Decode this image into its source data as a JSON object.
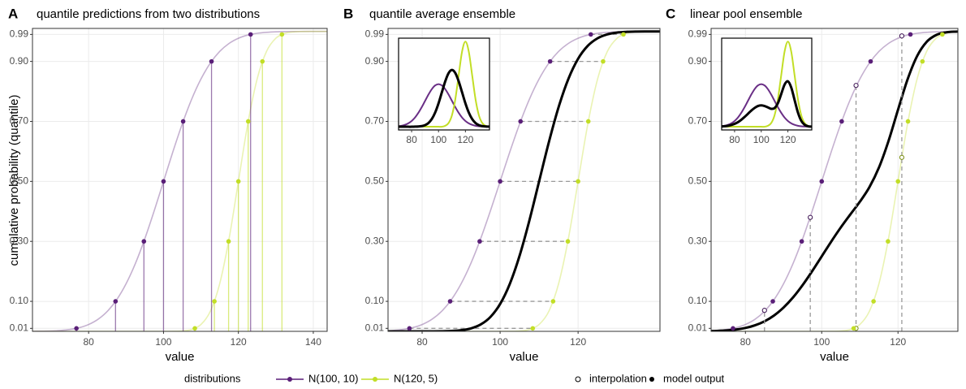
{
  "legend": {
    "title": "distributions",
    "interpolation": "interpolation",
    "model_output": "model output"
  },
  "chart_data": [
    {
      "type": "quantile",
      "panel": "A",
      "title": "quantile predictions from two distributions",
      "xlabel": "value",
      "ylabel": "cumulative probability (quantile)",
      "xlim": [
        65,
        143.7
      ],
      "xticks": [
        80,
        100,
        120,
        140
      ],
      "ylim": [
        0,
        1.01
      ],
      "yticks": [
        0.01,
        {
          "value": 0.1,
          "label": "0.10"
        },
        {
          "value": 0.3,
          "label": "0.30"
        },
        {
          "value": 0.5,
          "label": "0.50"
        },
        {
          "value": 0.7,
          "label": "0.70"
        },
        {
          "value": 0.9,
          "label": "0.90"
        },
        0.99
      ],
      "grid": true,
      "levels": [
        0.01,
        0.1,
        0.3,
        0.5,
        0.7,
        0.9,
        0.99
      ],
      "curve_x": [
        65,
        67.5,
        70,
        72.5,
        75,
        77.5,
        80,
        82.5,
        85,
        87.5,
        90,
        92.5,
        95,
        97.5,
        100,
        102.5,
        105,
        107.5,
        110,
        112.5,
        115,
        117.5,
        120,
        122.5,
        125,
        127.5,
        130,
        132.5,
        135,
        137.5,
        140,
        142.5,
        145
      ],
      "series": [
        {
          "name": "N(100, 10)",
          "color": "#5a1f78",
          "quantiles": [
            76.74,
            87.18,
            94.76,
            100,
            105.24,
            112.82,
            123.26
          ],
          "curve": [
            0.0002,
            0.0006,
            0.0013,
            0.003,
            0.0062,
            0.0122,
            0.0228,
            0.0401,
            0.0668,
            0.1056,
            0.1587,
            0.2266,
            0.3085,
            0.4013,
            0.5,
            0.5987,
            0.6915,
            0.7734,
            0.8413,
            0.8944,
            0.9332,
            0.9599,
            0.9772,
            0.9878,
            0.9938,
            0.997,
            0.9987,
            0.9994,
            0.9998,
            0.9999,
            1,
            1,
            1
          ]
        },
        {
          "name": "N(120, 5)",
          "color": "#c2de26",
          "quantiles": [
            108.37,
            113.59,
            117.38,
            120,
            122.62,
            126.41,
            131.63
          ],
          "curve": [
            0,
            0,
            0,
            0,
            0,
            0,
            0,
            0,
            0,
            0,
            0,
            0,
            0,
            0,
            0,
            0.0002,
            0.0013,
            0.0062,
            0.0228,
            0.0668,
            0.1587,
            0.3085,
            0.5,
            0.6915,
            0.8413,
            0.9332,
            0.9772,
            0.9938,
            0.9987,
            0.9998,
            1,
            1,
            1
          ]
        }
      ]
    },
    {
      "type": "quantile_average",
      "panel": "B",
      "title": "quantile average ensemble",
      "xlabel": "value",
      "xlim": [
        71.25,
        141
      ],
      "xticks": [
        80,
        100,
        120
      ],
      "ylim": [
        0,
        1.01
      ],
      "yticks": [
        0.01,
        {
          "value": 0.1,
          "label": "0.10"
        },
        {
          "value": 0.3,
          "label": "0.30"
        },
        {
          "value": 0.5,
          "label": "0.50"
        },
        {
          "value": 0.7,
          "label": "0.70"
        },
        {
          "value": 0.9,
          "label": "0.90"
        },
        0.99
      ],
      "grid": true,
      "levels": [
        0.01,
        0.1,
        0.3,
        0.5,
        0.7,
        0.9,
        0.99
      ],
      "curve_x": [
        65,
        67.5,
        70,
        72.5,
        75,
        77.5,
        80,
        82.5,
        85,
        87.5,
        90,
        92.5,
        95,
        97.5,
        100,
        102.5,
        105,
        107.5,
        110,
        112.5,
        115,
        117.5,
        120,
        122.5,
        125,
        127.5,
        130,
        132.5,
        135,
        137.5,
        140,
        142.5,
        145
      ],
      "series": [
        {
          "color": "#5a1f78",
          "quantiles": [
            76.74,
            87.18,
            94.76,
            100,
            105.24,
            112.82,
            123.26
          ],
          "curve": [
            0.0002,
            0.0006,
            0.0013,
            0.003,
            0.0062,
            0.0122,
            0.0228,
            0.0401,
            0.0668,
            0.1056,
            0.1587,
            0.2266,
            0.3085,
            0.4013,
            0.5,
            0.5987,
            0.6915,
            0.7734,
            0.8413,
            0.8944,
            0.9332,
            0.9599,
            0.9772,
            0.9878,
            0.9938,
            0.997,
            0.9987,
            0.9994,
            0.9998,
            0.9999,
            1,
            1,
            1
          ]
        },
        {
          "color": "#c2de26",
          "quantiles": [
            108.37,
            113.59,
            117.38,
            120,
            122.62,
            126.41,
            131.63
          ],
          "curve": [
            0,
            0,
            0,
            0,
            0,
            0,
            0,
            0,
            0,
            0,
            0,
            0,
            0,
            0,
            0,
            0.0002,
            0.0013,
            0.0062,
            0.0228,
            0.0668,
            0.1587,
            0.3085,
            0.5,
            0.6915,
            0.8413,
            0.9332,
            0.9772,
            0.9938,
            0.9987,
            0.9998,
            1,
            1,
            1
          ]
        }
      ],
      "ensemble": {
        "color": "#000000",
        "curve": [
          0,
          0,
          0,
          0,
          0,
          0,
          0,
          0.0001,
          0.0004,
          0.0013,
          0.0038,
          0.0098,
          0.0228,
          0.0478,
          0.0912,
          0.1587,
          0.2525,
          0.3694,
          0.5,
          0.6306,
          0.7475,
          0.8413,
          0.9088,
          0.9522,
          0.9772,
          0.9902,
          0.9962,
          0.9987,
          0.9996,
          0.9999,
          1,
          1,
          1
        ]
      },
      "inset": {
        "xlim": [
          70.3,
          137.9
        ],
        "ylim": [
          -0.003,
          0.083
        ],
        "xticks": [
          80,
          100,
          120
        ],
        "x": [
          70,
          72.5,
          75,
          77.5,
          80,
          82.5,
          85,
          87.5,
          90,
          92.5,
          95,
          97.5,
          100,
          102.5,
          105,
          107.5,
          110,
          112.5,
          115,
          117.5,
          120,
          122.5,
          125,
          127.5,
          130,
          132.5,
          135,
          137.5,
          140
        ],
        "series": [
          {
            "color": "#6a2f86",
            "values": [
              0.0004,
              0.0009,
              0.0018,
              0.0032,
              0.0054,
              0.0086,
              0.013,
              0.0183,
              0.0242,
              0.0301,
              0.0352,
              0.0387,
              0.0399,
              0.0387,
              0.0352,
              0.0301,
              0.0242,
              0.0183,
              0.013,
              0.0086,
              0.0054,
              0.0032,
              0.0018,
              0.0009,
              0.0004,
              0.0002,
              0.0001,
              0,
              0
            ]
          },
          {
            "color": "#c2de26",
            "values": [
              0,
              0,
              0,
              0,
              0,
              0,
              0,
              0,
              0,
              0,
              0,
              0,
              0,
              0,
              0.0009,
              0.0035,
              0.0108,
              0.0259,
              0.0484,
              0.0704,
              0.0798,
              0.0704,
              0.0484,
              0.0259,
              0.0108,
              0.0035,
              0.0009,
              0.0002,
              0
            ]
          },
          {
            "color": "#000000",
            "values": [
              0,
              0,
              0,
              0,
              0,
              0.0001,
              0.0002,
              0.0006,
              0.0015,
              0.0035,
              0.0072,
              0.0133,
              0.0219,
              0.0323,
              0.0426,
              0.0503,
              0.0532,
              0.0503,
              0.0426,
              0.0323,
              0.0219,
              0.0133,
              0.0072,
              0.0035,
              0.0015,
              0.0006,
              0.0002,
              0.0001,
              0
            ]
          }
        ]
      }
    },
    {
      "type": "linear_pool",
      "panel": "C",
      "title": "linear pool ensemble",
      "xlabel": "value",
      "xlim": [
        71,
        135.7
      ],
      "xticks": [
        80,
        100,
        120
      ],
      "ylim": [
        0,
        1.01
      ],
      "yticks": [
        0.01,
        {
          "value": 0.1,
          "label": "0.10"
        },
        {
          "value": 0.3,
          "label": "0.30"
        },
        {
          "value": 0.5,
          "label": "0.50"
        },
        {
          "value": 0.7,
          "label": "0.70"
        },
        {
          "value": 0.9,
          "label": "0.90"
        },
        0.99
      ],
      "grid": true,
      "levels": [
        0.01,
        0.1,
        0.3,
        0.5,
        0.7,
        0.9,
        0.99
      ],
      "interpolation_x": [
        85,
        97,
        109,
        121
      ],
      "curve_x": [
        65,
        67.5,
        70,
        72.5,
        75,
        77.5,
        80,
        82.5,
        85,
        87.5,
        90,
        92.5,
        95,
        97.5,
        100,
        102.5,
        105,
        107.5,
        110,
        112.5,
        115,
        117.5,
        120,
        122.5,
        125,
        127.5,
        130,
        132.5,
        135,
        137.5,
        140,
        142.5,
        145
      ],
      "series": [
        {
          "color": "#5a1f78",
          "quantiles": [
            76.74,
            87.18,
            94.76,
            100,
            105.24,
            112.82,
            123.26
          ],
          "interpolation": [
            0.07,
            0.38,
            0.82,
            0.985
          ],
          "curve": [
            0.0002,
            0.0006,
            0.0013,
            0.003,
            0.0062,
            0.0122,
            0.0228,
            0.0401,
            0.0668,
            0.1056,
            0.1587,
            0.2266,
            0.3085,
            0.4013,
            0.5,
            0.5987,
            0.6915,
            0.7734,
            0.8413,
            0.8944,
            0.9332,
            0.9599,
            0.9772,
            0.9878,
            0.9938,
            0.997,
            0.9987,
            0.9994,
            0.9998,
            0.9999,
            1,
            1,
            1
          ]
        },
        {
          "color": "#c2de26",
          "quantiles": [
            108.37,
            113.59,
            117.38,
            120,
            122.62,
            126.41,
            131.63
          ],
          "interpolation": [
            null,
            null,
            0.01,
            0.58
          ],
          "curve": [
            0,
            0,
            0,
            0,
            0,
            0,
            0,
            0,
            0,
            0,
            0,
            0,
            0,
            0,
            0,
            0.0002,
            0.0013,
            0.0062,
            0.0228,
            0.0668,
            0.1587,
            0.3085,
            0.5,
            0.6915,
            0.8413,
            0.9332,
            0.9772,
            0.9938,
            0.9987,
            0.9998,
            1,
            1,
            1
          ]
        }
      ],
      "ensemble": {
        "color": "#000000",
        "curve": [
          0.0001,
          0.0003,
          0.0007,
          0.0015,
          0.0031,
          0.0061,
          0.0114,
          0.0201,
          0.0334,
          0.0528,
          0.0794,
          0.1133,
          0.1543,
          0.2007,
          0.25,
          0.2995,
          0.3464,
          0.3898,
          0.4321,
          0.4806,
          0.546,
          0.6342,
          0.7386,
          0.8397,
          0.9176,
          0.9651,
          0.988,
          0.9966,
          0.9993,
          0.9999,
          1,
          1,
          1
        ]
      },
      "inset": {
        "xlim": [
          70.3,
          137.9
        ],
        "ylim": [
          -0.003,
          0.083
        ],
        "xticks": [
          80,
          100,
          120
        ],
        "x": [
          70,
          72.5,
          75,
          77.5,
          80,
          82.5,
          85,
          87.5,
          90,
          92.5,
          95,
          97.5,
          100,
          102.5,
          105,
          107.5,
          110,
          112.5,
          115,
          117.5,
          120,
          122.5,
          125,
          127.5,
          130,
          132.5,
          135,
          137.5,
          140
        ],
        "series": [
          {
            "color": "#6a2f86",
            "values": [
              0.0004,
              0.0009,
              0.0018,
              0.0032,
              0.0054,
              0.0086,
              0.013,
              0.0183,
              0.0242,
              0.0301,
              0.0352,
              0.0387,
              0.0399,
              0.0387,
              0.0352,
              0.0301,
              0.0242,
              0.0183,
              0.013,
              0.0086,
              0.0054,
              0.0032,
              0.0018,
              0.0009,
              0.0004,
              0.0002,
              0.0001,
              0,
              0
            ]
          },
          {
            "color": "#c2de26",
            "values": [
              0,
              0,
              0,
              0,
              0,
              0,
              0,
              0,
              0,
              0,
              0,
              0,
              0,
              0,
              0.0009,
              0.0035,
              0.0108,
              0.0259,
              0.0484,
              0.0704,
              0.0798,
              0.0704,
              0.0484,
              0.0259,
              0.0108,
              0.0035,
              0.0009,
              0.0002,
              0
            ]
          },
          {
            "color": "#000000",
            "values": [
              0.0002,
              0.0005,
              0.0009,
              0.0016,
              0.0027,
              0.0043,
              0.0065,
              0.0092,
              0.0121,
              0.0151,
              0.0176,
              0.0194,
              0.02,
              0.0194,
              0.0181,
              0.0168,
              0.0175,
              0.0221,
              0.0307,
              0.0395,
              0.0426,
              0.0368,
              0.0251,
              0.0134,
              0.0056,
              0.0019,
              0.0005,
              0.0001,
              0
            ]
          }
        ]
      }
    }
  ]
}
